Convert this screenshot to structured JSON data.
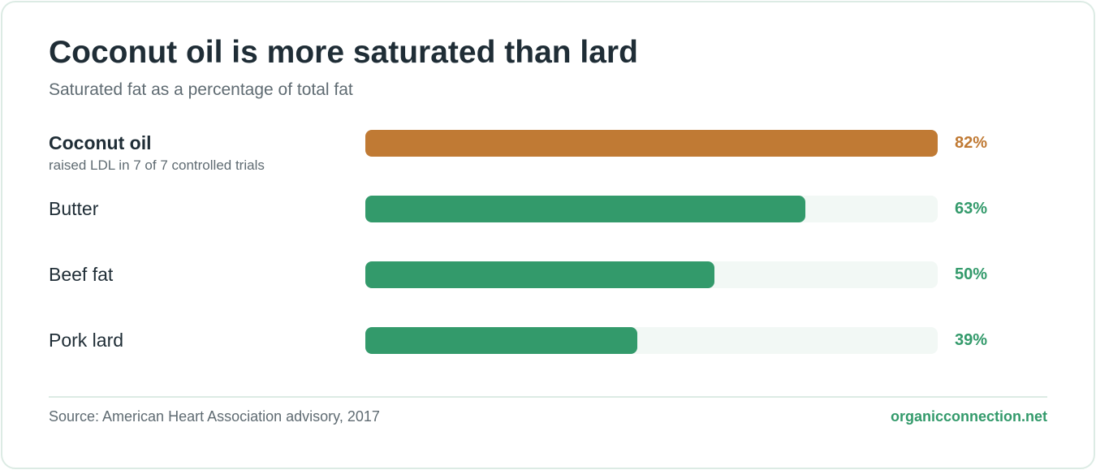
{
  "chart_data": {
    "type": "bar",
    "title": "Coconut oil is more saturated than lard",
    "subtitle": "Saturated fat as a percentage of total fat",
    "categories": [
      "Coconut oil",
      "Butter",
      "Beef fat",
      "Pork lard"
    ],
    "values": [
      82,
      63,
      50,
      39
    ],
    "value_labels": [
      "82%",
      "63%",
      "50%",
      "39%"
    ],
    "annotations": {
      "Coconut oil": "raised LDL in 7 of 7 controlled trials"
    },
    "highlighted_category": "Coconut oil",
    "xlim": [
      0,
      82
    ],
    "orientation": "horizontal",
    "grid": false,
    "source": "Source: American Heart Association advisory, 2017",
    "brand": "organicconnection.net"
  },
  "colors": {
    "highlight": "#c07a34",
    "bar": "#339a6b",
    "track": "#f2f8f5",
    "brand": "#339a6b"
  }
}
